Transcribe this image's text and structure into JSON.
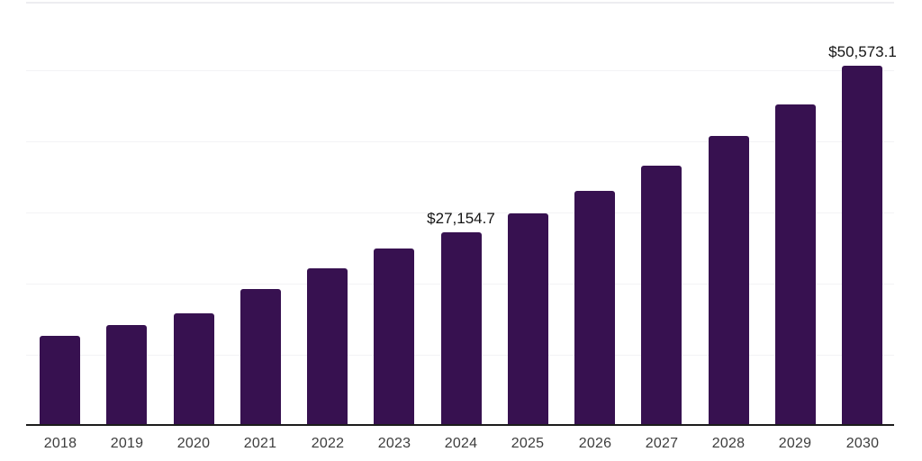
{
  "chart_data": {
    "type": "bar",
    "title": "",
    "xlabel": "",
    "ylabel": "",
    "categories": [
      "2018",
      "2019",
      "2020",
      "2021",
      "2022",
      "2023",
      "2024",
      "2025",
      "2026",
      "2027",
      "2028",
      "2029",
      "2030"
    ],
    "values": [
      12700,
      14200,
      15800,
      19200,
      22200,
      24900,
      27154.7,
      29900,
      33000,
      36600,
      40700,
      45200,
      50573.1
    ],
    "data_labels": [
      "",
      "",
      "",
      "",
      "",
      "",
      "$27,154.7",
      "",
      "",
      "",
      "",
      "",
      "$50,573.1"
    ],
    "ylim": [
      0,
      60000
    ],
    "gridline_values": [
      10000,
      20000,
      30000,
      40000,
      50000
    ],
    "grid": "on",
    "legend_position": "none",
    "bar_color": "#371150",
    "axis_line_color": "#1c1c1c",
    "gridline_color": "#f3f3f5",
    "tick_label_color": "#3d3d3d",
    "value_label_color": "#141414"
  }
}
